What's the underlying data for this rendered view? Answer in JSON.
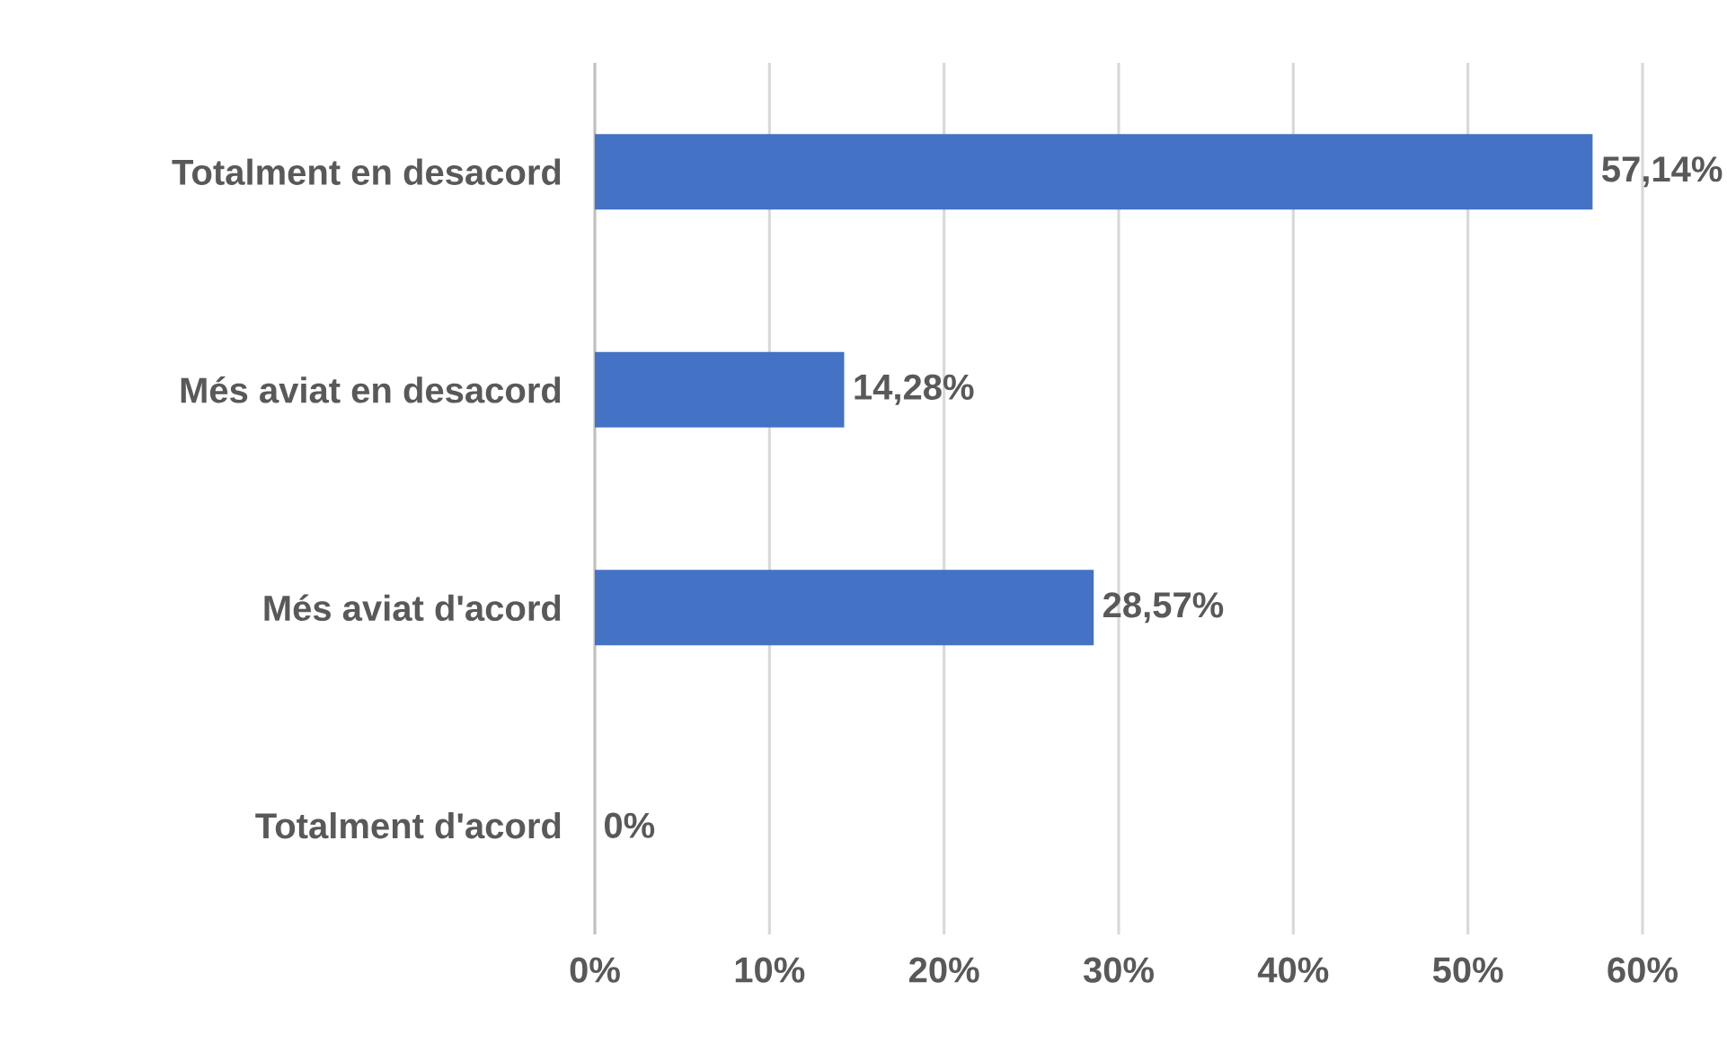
{
  "chart_data": {
    "type": "bar",
    "orientation": "horizontal",
    "categories": [
      "Totalment en desacord",
      "Més aviat en desacord",
      "Més aviat d'acord",
      "Totalment d'acord"
    ],
    "values": [
      57.14,
      14.28,
      28.57,
      0
    ],
    "value_labels": [
      "57,14%",
      "14,28%",
      "28,57%",
      "0%"
    ],
    "color": "#4472c4",
    "xlim": [
      0,
      60
    ],
    "xticks": [
      {
        "value": 0,
        "label": "0%"
      },
      {
        "value": 10,
        "label": "10%"
      },
      {
        "value": 20,
        "label": "20%"
      },
      {
        "value": 30,
        "label": "30%"
      },
      {
        "value": 40,
        "label": "40%"
      },
      {
        "value": 50,
        "label": "50%"
      },
      {
        "value": 60,
        "label": "60%"
      }
    ],
    "grid": "x"
  }
}
